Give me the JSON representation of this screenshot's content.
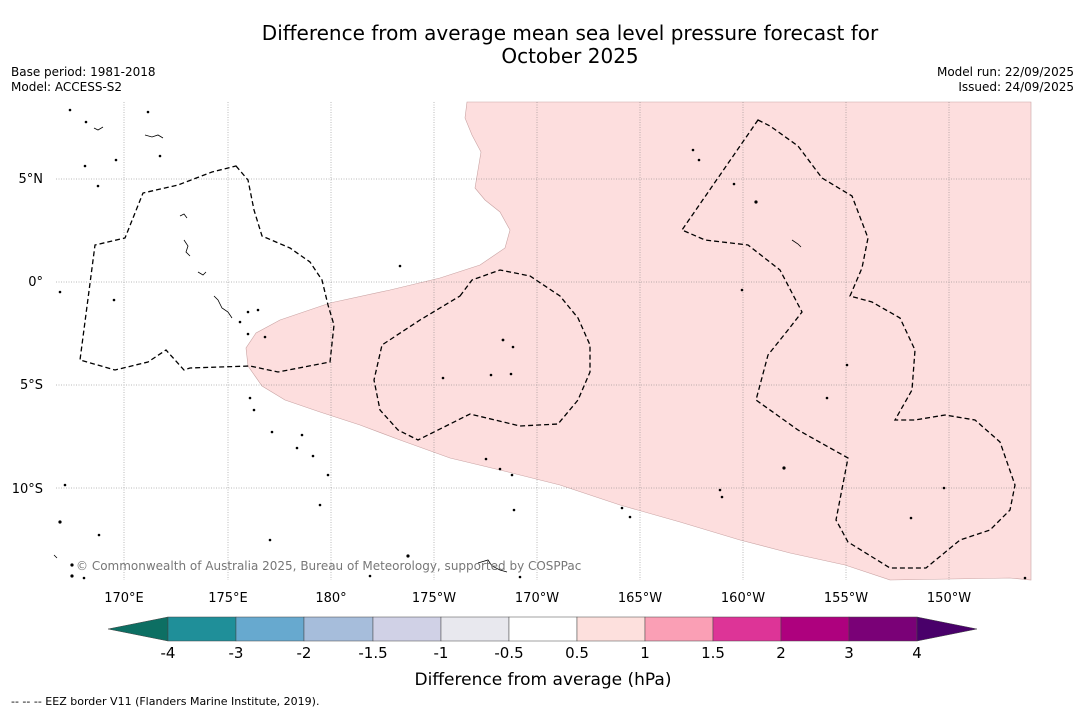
{
  "title": {
    "line1": "Difference from average mean sea level pressure forecast for",
    "line2": "October 2025"
  },
  "meta": {
    "base_period": "Base period: 1981-2018",
    "model": "Model: ACCESS-S2",
    "model_run": "Model run: 22/09/2025",
    "issued": "Issued: 24/09/2025"
  },
  "map": {
    "lat_labels": [
      "5°N",
      "0°",
      "5°S",
      "10°S"
    ],
    "lon_labels": [
      "170°E",
      "175°E",
      "180°",
      "175°W",
      "170°W",
      "165°W",
      "160°W",
      "155°W",
      "150°W"
    ],
    "copyright": "© Commonwealth of Australia 2025, Bureau of Meteorology, supported by COSPPac",
    "anomaly_fill_color": "#fddede",
    "anomaly_category": "0.5 to 1"
  },
  "colorbar": {
    "label": "Difference from average (hPa)",
    "ticks": [
      "-4",
      "-3",
      "-2",
      "-1.5",
      "-1",
      "-0.5",
      "0.5",
      "1",
      "1.5",
      "2",
      "3",
      "4"
    ],
    "colors": [
      "#0d6f63",
      "#1f8f99",
      "#67a9cf",
      "#a6bddb",
      "#d0d1e6",
      "#e8e8ee",
      "#ffffff",
      "#fde0dd",
      "#fa9fb5",
      "#dd3497",
      "#ae017e",
      "#7a0177",
      "#49006a"
    ]
  },
  "footer": {
    "eez_note": "--  --  -- EEZ border V11 (Flanders Marine Institute, 2019)."
  }
}
